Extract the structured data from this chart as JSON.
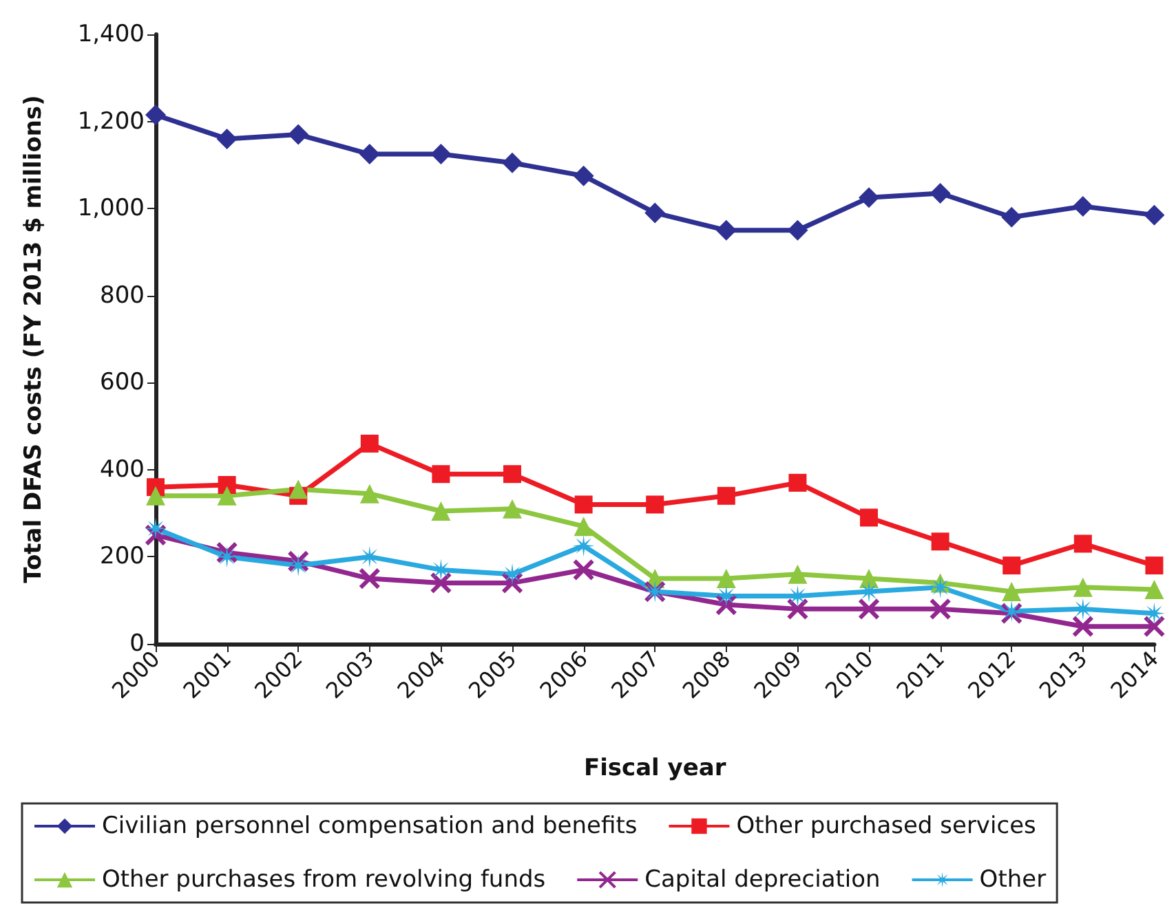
{
  "chart_data": {
    "type": "line",
    "xlabel": "Fiscal year",
    "ylabel": "Total DFAS costs (FY 2013 $ millions)",
    "categories": [
      "2000",
      "2001",
      "2002",
      "2003",
      "2004",
      "2005",
      "2006",
      "2007",
      "2008",
      "2009",
      "2010",
      "2011",
      "2012",
      "2013",
      "2014"
    ],
    "ylim": [
      0,
      1400
    ],
    "yticks": [
      0,
      200,
      400,
      600,
      800,
      {
        "value": 1000,
        "label": "1,000"
      },
      {
        "value": 1200,
        "label": "1,200"
      },
      {
        "value": 1400,
        "label": "1,400"
      }
    ],
    "grid": false,
    "legend": "bottom",
    "line_style": "solid",
    "series": [
      {
        "name": "Civilian personnel compensation and benefits",
        "color": "#2e3192",
        "marker": "diamond",
        "values": [
          1215,
          1160,
          1170,
          1125,
          1125,
          1105,
          1075,
          990,
          950,
          950,
          1025,
          1035,
          980,
          1005,
          985
        ]
      },
      {
        "name": "Other purchased services",
        "color": "#ed1c24",
        "marker": "square",
        "values": [
          360,
          365,
          340,
          460,
          390,
          390,
          320,
          320,
          340,
          370,
          290,
          235,
          180,
          230,
          180
        ]
      },
      {
        "name": "Other purchases from revolving funds",
        "color": "#8dc63f",
        "marker": "triangle",
        "values": [
          340,
          340,
          355,
          345,
          305,
          310,
          270,
          150,
          150,
          160,
          150,
          140,
          120,
          130,
          125
        ]
      },
      {
        "name": "Capital depreciation",
        "color": "#92278f",
        "marker": "cross",
        "values": [
          250,
          210,
          190,
          150,
          140,
          140,
          170,
          120,
          90,
          80,
          80,
          80,
          70,
          40,
          40
        ]
      },
      {
        "name": "Other",
        "color": "#29a9e0",
        "marker": "star",
        "values": [
          265,
          200,
          180,
          200,
          170,
          160,
          225,
          120,
          110,
          110,
          120,
          130,
          75,
          80,
          70
        ]
      }
    ]
  }
}
